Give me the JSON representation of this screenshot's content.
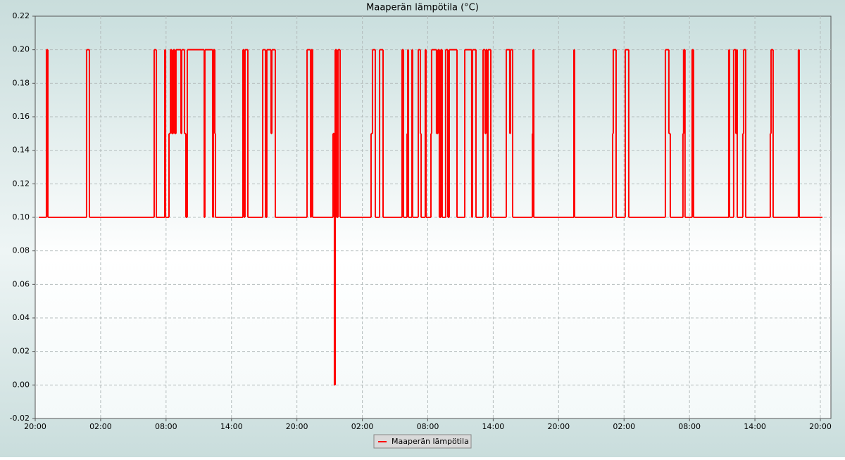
{
  "chart_data": {
    "type": "line",
    "step": "post",
    "title": "Maaperän lämpötila (°C)",
    "x": [
      0.32,
      1.03,
      1.16,
      4.71,
      4.97,
      10.91,
      11.11,
      11.88,
      11.95,
      12.27,
      12.4,
      12.53,
      12.66,
      12.79,
      12.91,
      13.37,
      13.43,
      13.69,
      13.82,
      13.95,
      15.5,
      15.56,
      16.27,
      16.34,
      16.47,
      16.53,
      19.05,
      19.18,
      19.24,
      19.5,
      20.86,
      21.12,
      21.24,
      21.63,
      21.7,
      22.02,
      24.93,
      25.25,
      25.31,
      25.44,
      27.31,
      27.44,
      27.51,
      27.64,
      27.77,
      27.96,
      30.8,
      30.93,
      31.19,
      31.58,
      31.9,
      33.64,
      33.77,
      34.1,
      34.16,
      34.22,
      34.55,
      34.61,
      35.13,
      35.32,
      35.39,
      35.77,
      35.84,
      36.29,
      36.35,
      36.8,
      36.93,
      37.06,
      37.19,
      37.32,
      37.64,
      37.84,
      37.97,
      38.68,
      39.39,
      40.03,
      40.1,
      40.42,
      41.07,
      41.26,
      41.33,
      41.46,
      41.52,
      41.78,
      43.2,
      43.52,
      43.58,
      43.78,
      45.59,
      45.65,
      45.72,
      49.4,
      49.46,
      52.95,
      53.01,
      53.27,
      54.11,
      54.43,
      57.79,
      58.11,
      58.24,
      59.4,
      59.46,
      59.59,
      60.24,
      60.37,
      63.6,
      63.67,
      64.05,
      64.25,
      64.31,
      64.38,
      64.89,
      64.96,
      65.15,
      67.41,
      67.48,
      67.67,
      69.99,
      70.06,
      72.13
    ],
    "series": [
      {
        "name": "Maaperän lämpötila",
        "color": "#ff0000",
        "values": [
          0.1,
          0.2,
          0.1,
          0.2,
          0.1,
          0.2,
          0.1,
          0.2,
          0.1,
          0.15,
          0.2,
          0.15,
          0.2,
          0.15,
          0.2,
          0.15,
          0.2,
          0.15,
          0.1,
          0.2,
          0.1,
          0.2,
          0.1,
          0.2,
          0.15,
          0.1,
          0.2,
          0.1,
          0.2,
          0.1,
          0.2,
          0.1,
          0.2,
          0.15,
          0.2,
          0.1,
          0.2,
          0.1,
          0.2,
          0.1,
          0.15,
          0,
          0.2,
          0.1,
          0.2,
          0.1,
          0.15,
          0.2,
          0.1,
          0.2,
          0.1,
          0.2,
          0.1,
          0.15,
          0.2,
          0.1,
          0.2,
          0.1,
          0.2,
          0.15,
          0.1,
          0.2,
          0.1,
          0.15,
          0.2,
          0.15,
          0.2,
          0.1,
          0.2,
          0.1,
          0.2,
          0.1,
          0.2,
          0.1,
          0.2,
          0.1,
          0.2,
          0.1,
          0.2,
          0.15,
          0.2,
          0.1,
          0.2,
          0.1,
          0.2,
          0.15,
          0.2,
          0.1,
          0.15,
          0.2,
          0.1,
          0.2,
          0.1,
          0.15,
          0.2,
          0.1,
          0.2,
          0.1,
          0.2,
          0.15,
          0.1,
          0.15,
          0.2,
          0.1,
          0.2,
          0.1,
          0.2,
          0.1,
          0.2,
          0.15,
          0.2,
          0.1,
          0.15,
          0.2,
          0.1,
          0.15,
          0.2,
          0.1,
          0.2,
          0.1,
          0.1
        ]
      }
    ],
    "xlim": [
      0,
      72.97
    ],
    "xticks": [
      {
        "value": 0,
        "label": "20:00"
      },
      {
        "value": 6,
        "label": "02:00"
      },
      {
        "value": 12,
        "label": "08:00"
      },
      {
        "value": 18,
        "label": "14:00"
      },
      {
        "value": 24,
        "label": "20:00"
      },
      {
        "value": 30,
        "label": "02:00"
      },
      {
        "value": 36,
        "label": "08:00"
      },
      {
        "value": 42,
        "label": "14:00"
      },
      {
        "value": 48,
        "label": "20:00"
      },
      {
        "value": 54,
        "label": "02:00"
      },
      {
        "value": 60,
        "label": "08:00"
      },
      {
        "value": 66,
        "label": "14:00"
      },
      {
        "value": 72,
        "label": "20:00"
      }
    ],
    "ylim": [
      -0.02,
      0.22
    ],
    "yticks": [
      {
        "value": -0.02,
        "label": "-0.02"
      },
      {
        "value": 0,
        "label": "0.00"
      },
      {
        "value": 0.02,
        "label": "0.02"
      },
      {
        "value": 0.04,
        "label": "0.04"
      },
      {
        "value": 0.06,
        "label": "0.06"
      },
      {
        "value": 0.08,
        "label": "0.08"
      },
      {
        "value": 0.1,
        "label": "0.10"
      },
      {
        "value": 0.12,
        "label": "0.12"
      },
      {
        "value": 0.14,
        "label": "0.14"
      },
      {
        "value": 0.16,
        "label": "0.16"
      },
      {
        "value": 0.18,
        "label": "0.18"
      },
      {
        "value": 0.2,
        "label": "0.20"
      },
      {
        "value": 0.22,
        "label": "0.22"
      }
    ],
    "grid": true,
    "legend": "bottom"
  }
}
